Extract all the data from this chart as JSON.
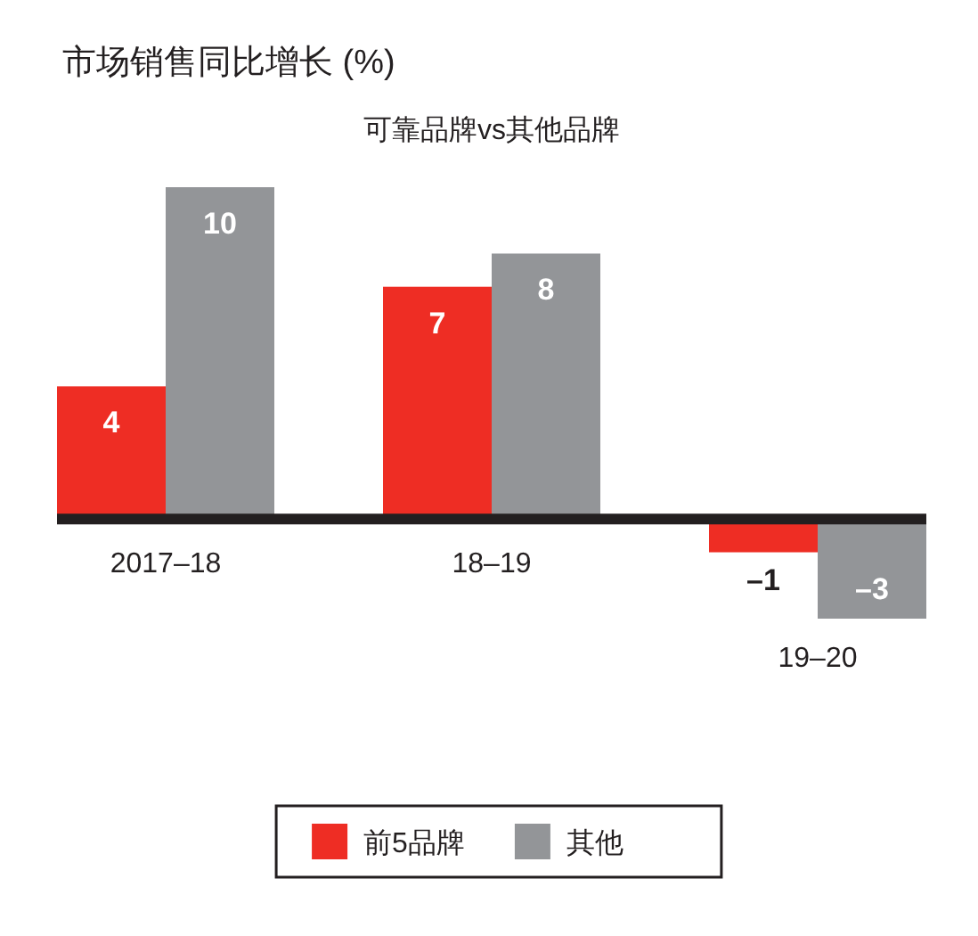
{
  "chart_data": {
    "type": "bar",
    "title": "市场销售同比增长 (%)",
    "subtitle": "可靠品牌vs其他品牌",
    "categories": [
      "2017–18",
      "18–19",
      "19–20"
    ],
    "series": [
      {
        "name": "前5品牌",
        "color": "#ee2d24",
        "values": [
          4,
          7,
          -1
        ],
        "value_labels": [
          "4",
          "7",
          "–1"
        ]
      },
      {
        "name": "其他",
        "color": "#939598",
        "values": [
          10,
          8,
          -3
        ],
        "value_labels": [
          "10",
          "8",
          "–3"
        ]
      }
    ],
    "legend": "bottom"
  }
}
